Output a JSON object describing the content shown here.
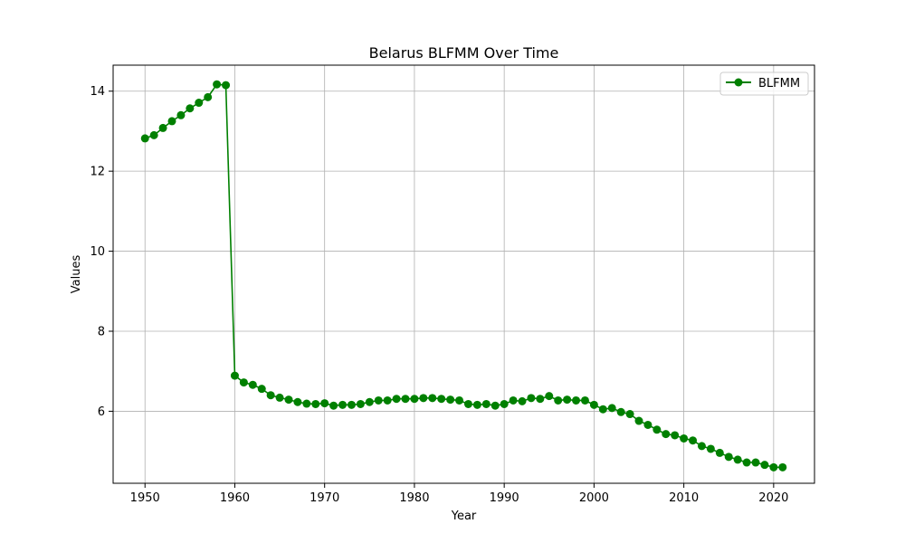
{
  "chart_data": {
    "type": "line",
    "title": "Belarus BLFMM Over Time",
    "xlabel": "Year",
    "ylabel": "Values",
    "xlim": [
      1946.45,
      2024.55
    ],
    "ylim": [
      4.2,
      14.65
    ],
    "xticks": [
      1950,
      1960,
      1970,
      1980,
      1990,
      2000,
      2010,
      2020
    ],
    "yticks": [
      6,
      8,
      10,
      12,
      14
    ],
    "grid": true,
    "legend_position": "top-right",
    "series": [
      {
        "name": "BLFMM",
        "color": "#008000",
        "marker": "circle",
        "x": [
          1950,
          1951,
          1952,
          1953,
          1954,
          1955,
          1956,
          1957,
          1958,
          1959,
          1960,
          1961,
          1962,
          1963,
          1964,
          1965,
          1966,
          1967,
          1968,
          1969,
          1970,
          1971,
          1972,
          1973,
          1974,
          1975,
          1976,
          1977,
          1978,
          1979,
          1980,
          1981,
          1982,
          1983,
          1984,
          1985,
          1986,
          1987,
          1988,
          1989,
          1990,
          1991,
          1992,
          1993,
          1994,
          1995,
          1996,
          1997,
          1998,
          1999,
          2000,
          2001,
          2002,
          2003,
          2004,
          2005,
          2006,
          2007,
          2008,
          2009,
          2010,
          2011,
          2012,
          2013,
          2014,
          2015,
          2016,
          2017,
          2018,
          2019,
          2020,
          2021
        ],
        "values": [
          12.82,
          12.9,
          13.08,
          13.25,
          13.4,
          13.57,
          13.71,
          13.85,
          14.17,
          14.15,
          6.89,
          6.72,
          6.66,
          6.56,
          6.4,
          6.34,
          6.29,
          6.23,
          6.19,
          6.18,
          6.2,
          6.14,
          6.16,
          6.16,
          6.18,
          6.23,
          6.27,
          6.27,
          6.31,
          6.31,
          6.31,
          6.33,
          6.33,
          6.31,
          6.29,
          6.27,
          6.18,
          6.16,
          6.18,
          6.14,
          6.18,
          6.27,
          6.25,
          6.33,
          6.31,
          6.38,
          6.27,
          6.29,
          6.27,
          6.27,
          6.16,
          6.05,
          6.08,
          5.98,
          5.93,
          5.76,
          5.66,
          5.54,
          5.43,
          5.4,
          5.32,
          5.27,
          5.13,
          5.06,
          4.96,
          4.86,
          4.79,
          4.72,
          4.72,
          4.66,
          4.6,
          4.6
        ]
      }
    ]
  }
}
